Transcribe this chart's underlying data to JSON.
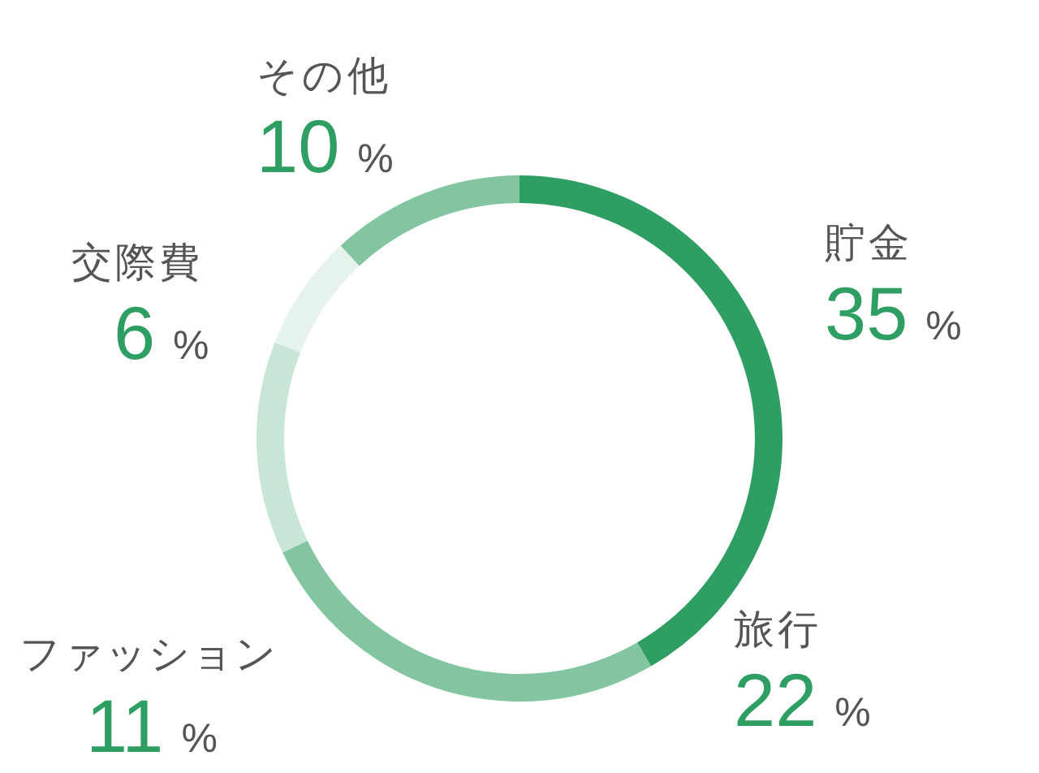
{
  "chart_data": {
    "type": "donut",
    "categories": [
      "貯金",
      "旅行",
      "ファッション",
      "交際費",
      "その他"
    ],
    "values": [
      35,
      22,
      11,
      6,
      10
    ],
    "colors": [
      "#2e9e62",
      "#82c5a0",
      "#c8e6d6",
      "#e6f3ec",
      "#82c5a0"
    ],
    "value_labels": [
      "35 %",
      "22 %",
      "11 %",
      "6 %",
      "10 %"
    ]
  }
}
